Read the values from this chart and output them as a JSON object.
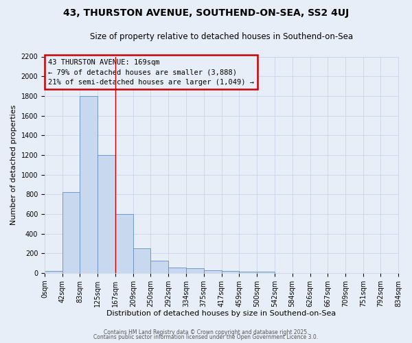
{
  "title": "43, THURSTON AVENUE, SOUTHEND-ON-SEA, SS2 4UJ",
  "subtitle": "Size of property relative to detached houses in Southend-on-Sea",
  "xlabel": "Distribution of detached houses by size in Southend-on-Sea",
  "ylabel": "Number of detached properties",
  "bar_values": [
    20,
    820,
    1800,
    1200,
    600,
    250,
    125,
    55,
    45,
    30,
    20,
    10,
    10,
    0,
    0,
    0,
    0,
    0,
    0,
    0
  ],
  "bin_edges": [
    0,
    42,
    83,
    125,
    167,
    209,
    250,
    292,
    334,
    375,
    417,
    459,
    500,
    542,
    584,
    626,
    667,
    709,
    751,
    792,
    834
  ],
  "x_labels": [
    "0sqm",
    "42sqm",
    "83sqm",
    "125sqm",
    "167sqm",
    "209sqm",
    "250sqm",
    "292sqm",
    "334sqm",
    "375sqm",
    "417sqm",
    "459sqm",
    "500sqm",
    "542sqm",
    "584sqm",
    "626sqm",
    "667sqm",
    "709sqm",
    "751sqm",
    "792sqm",
    "834sqm"
  ],
  "bar_color": "#c8d8ee",
  "bar_edge_color": "#6090c0",
  "vline_x": 167,
  "vline_color": "#cc0000",
  "ylim": [
    0,
    2200
  ],
  "yticks": [
    0,
    200,
    400,
    600,
    800,
    1000,
    1200,
    1400,
    1600,
    1800,
    2000,
    2200
  ],
  "annotation_title": "43 THURSTON AVENUE: 169sqm",
  "annotation_line1": "← 79% of detached houses are smaller (3,888)",
  "annotation_line2": "21% of semi-detached houses are larger (1,049) →",
  "annotation_box_color": "#cc0000",
  "grid_color": "#c8d4e8",
  "bg_color": "#e8eef8",
  "footer1": "Contains HM Land Registry data © Crown copyright and database right 2025.",
  "footer2": "Contains public sector information licensed under the Open Government Licence 3.0.",
  "title_fontsize": 10,
  "subtitle_fontsize": 8.5,
  "axis_label_fontsize": 8,
  "tick_fontsize": 7,
  "annot_fontsize": 7.5
}
